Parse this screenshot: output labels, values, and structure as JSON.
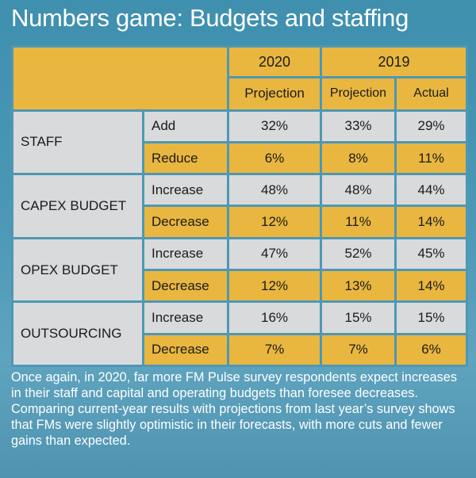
{
  "title": "Numbers game: Budgets and staffing",
  "colors": {
    "accent": "#e9b73f",
    "gray_cell": "#d9dadb",
    "background": "#4a98b6"
  },
  "chart_data": {
    "type": "table",
    "header": {
      "years": [
        "2020",
        "2019"
      ],
      "columns": [
        "Projection",
        "Projection",
        "Actual"
      ]
    },
    "groups": [
      {
        "label": "STAFF",
        "rows": [
          {
            "label": "Add",
            "values": [
              "32%",
              "33%",
              "29%"
            ]
          },
          {
            "label": "Reduce",
            "values": [
              "6%",
              "8%",
              "11%"
            ]
          }
        ]
      },
      {
        "label": "CAPEX BUDGET",
        "rows": [
          {
            "label": "Increase",
            "values": [
              "48%",
              "48%",
              "44%"
            ]
          },
          {
            "label": "Decrease",
            "values": [
              "12%",
              "11%",
              "14%"
            ]
          }
        ]
      },
      {
        "label": "OPEX BUDGET",
        "rows": [
          {
            "label": "Increase",
            "values": [
              "47%",
              "52%",
              "45%"
            ]
          },
          {
            "label": "Decrease",
            "values": [
              "12%",
              "13%",
              "14%"
            ]
          }
        ]
      },
      {
        "label": "OUTSOURCING",
        "rows": [
          {
            "label": "Increase",
            "values": [
              "16%",
              "15%",
              "15%"
            ]
          },
          {
            "label": "Decrease",
            "values": [
              "7%",
              "7%",
              "6%"
            ]
          }
        ]
      }
    ]
  },
  "caption": "Once again, in 2020, far more FM Pulse survey respondents expect increases in their staff and capital and operating budgets than foresee decreases. Comparing current-year results with projections from last year’s survey shows that FMs were slightly optimistic in their forecasts, with more cuts and fewer gains than expected."
}
